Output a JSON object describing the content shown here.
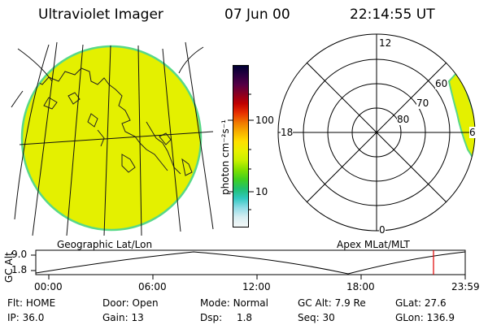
{
  "header": {
    "title": "Ultraviolet Imager",
    "date": "07 Jun 00",
    "time": "22:14:55 UT"
  },
  "colorbar": {
    "unit_label": "photon cm⁻²s⁻¹",
    "ticks": [
      "100",
      "10"
    ],
    "colors": [
      "#000033",
      "#2a0040",
      "#550045",
      "#8a0020",
      "#c00000",
      "#e83000",
      "#f07800",
      "#f8b000",
      "#ffe000",
      "#e8f000",
      "#c8f000",
      "#80e000",
      "#40d020",
      "#20c070",
      "#30c8c0",
      "#90dce6",
      "#d8eef2",
      "#f4f8f8"
    ]
  },
  "left_panel": {
    "caption": "Geographic Lat/Lon",
    "fill_color": "#e4f000",
    "edge_color": "#58d888"
  },
  "right_panel": {
    "caption": "Apex MLat/MLT",
    "mlt_labels": {
      "top": "12",
      "left": "18",
      "right": "6",
      "bottom": "0"
    },
    "mlat_labels": [
      "60",
      "70",
      "80"
    ]
  },
  "timeline": {
    "axis_title": "GC Alt",
    "y_ticks": [
      "9.0",
      "1.8"
    ],
    "x_ticks": [
      "00:00",
      "06:00",
      "12:00",
      "18:00",
      "23:59"
    ],
    "current_marker_color": "#e00000"
  },
  "status": {
    "row1": [
      {
        "label": "Flt:",
        "value": "HOME"
      },
      {
        "label": "Door:",
        "value": "Open"
      },
      {
        "label": "Mode:",
        "value": "Normal"
      },
      {
        "label": "GC Alt:",
        "value": "7.9 Re"
      },
      {
        "label": "GLat:",
        "value": "27.6"
      }
    ],
    "row2": [
      {
        "label": "IP:",
        "value": "36.0"
      },
      {
        "label": "Gain:",
        "value": "13"
      },
      {
        "label": "Dsp:",
        "value": "1.8"
      },
      {
        "label": "Seq:",
        "value": "30"
      },
      {
        "label": "GLon:",
        "value": "136.9"
      }
    ]
  }
}
